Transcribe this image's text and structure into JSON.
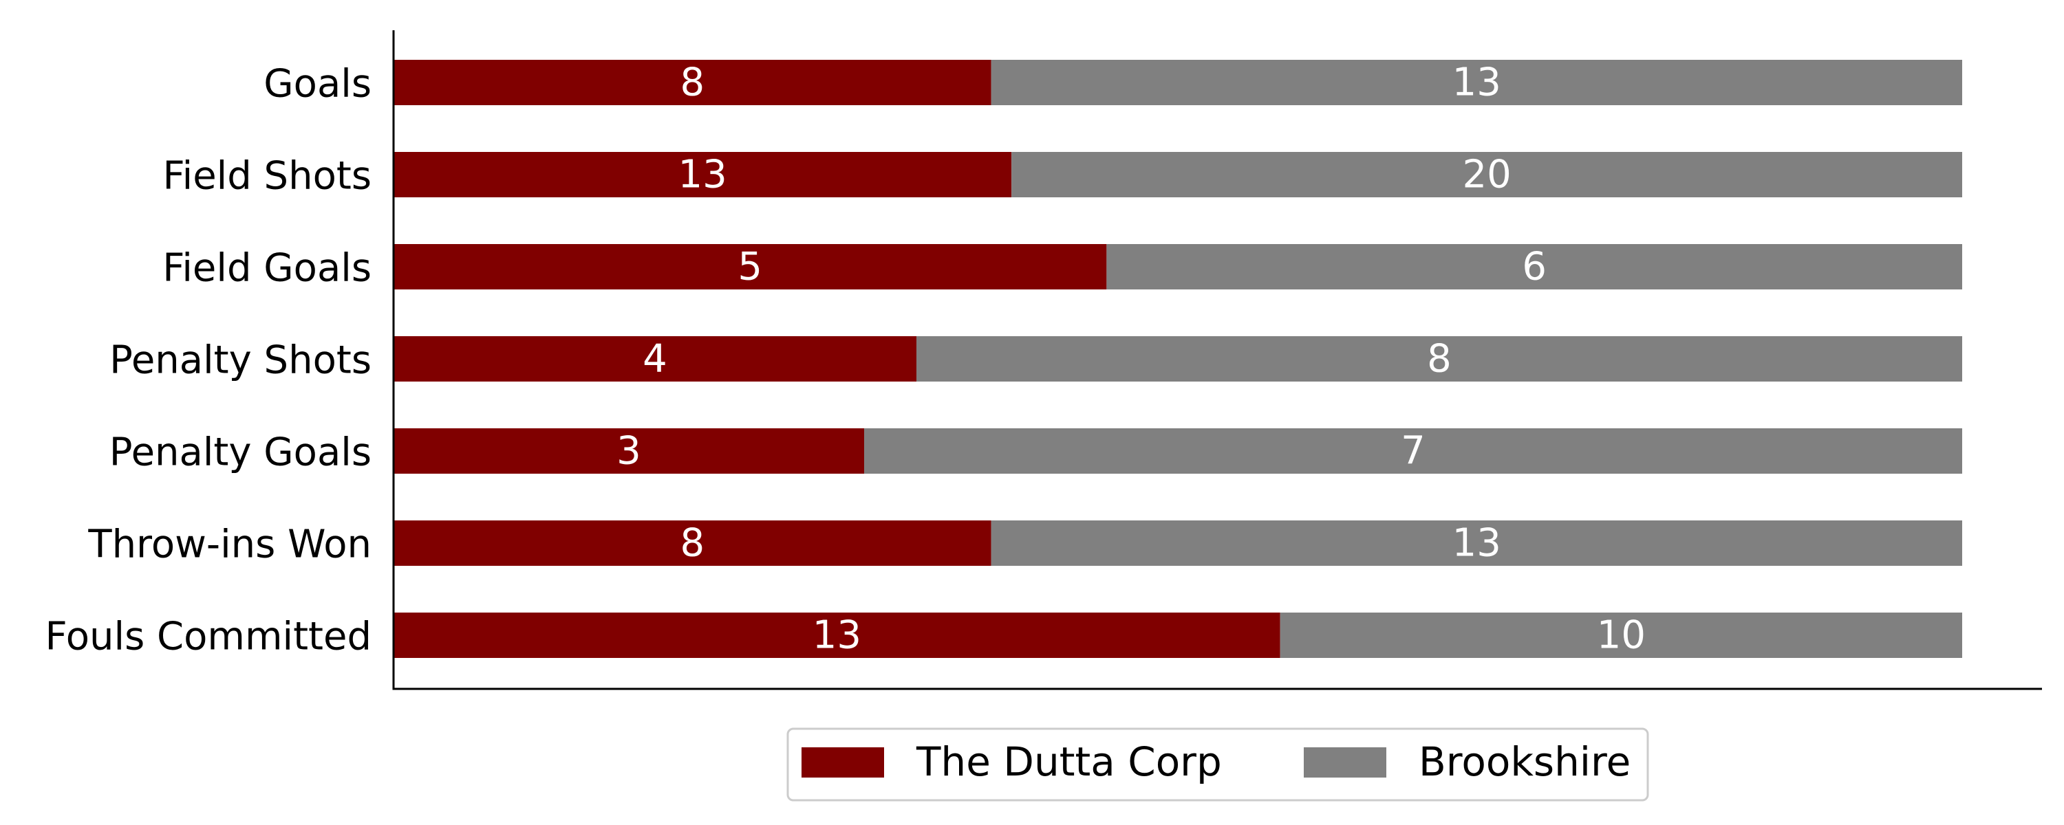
{
  "chart_data": {
    "type": "bar",
    "orientation": "horizontal",
    "stacked": true,
    "normalized": true,
    "categories": [
      "Goals",
      "Field Shots",
      "Field Goals",
      "Penalty Shots",
      "Penalty Goals",
      "Throw-ins Won",
      "Fouls Committed"
    ],
    "series": [
      {
        "name": "The Dutta Corp",
        "color": "#800000",
        "values": [
          8,
          13,
          5,
          4,
          3,
          8,
          13
        ]
      },
      {
        "name": "Brookshire",
        "color": "#808080",
        "values": [
          13,
          20,
          6,
          8,
          7,
          13,
          10
        ]
      }
    ],
    "title": "",
    "xlabel": "",
    "ylabel": "",
    "grid": false,
    "legend_position": "bottom-center"
  }
}
